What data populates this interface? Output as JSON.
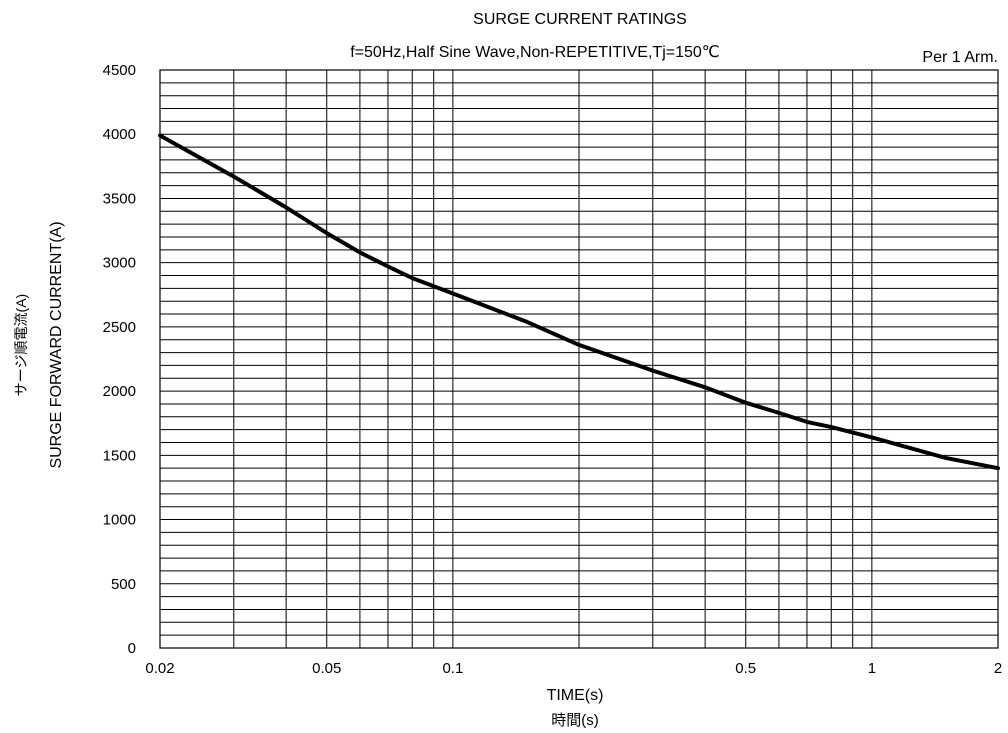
{
  "chart_data": {
    "type": "line",
    "title": "SURGE CURRENT RATINGS",
    "subtitle": "f=50Hz,Half Sine Wave,Non-REPETITIVE,Tj=150℃",
    "annotation": "Per 1 Arm.",
    "xlabel": "TIME(s)",
    "xlabel_ja": "時間(s)",
    "ylabel": "SURGE FORWARD CURRENT(A)",
    "ylabel_ja": "サージ順電流(A)",
    "x_scale": "log",
    "xlim": [
      0.02,
      2
    ],
    "ylim": [
      0,
      4500
    ],
    "grid": true,
    "x_ticks": [
      0.02,
      0.05,
      0.1,
      0.5,
      1,
      2
    ],
    "x_tick_labels": [
      "0.02",
      "0.05",
      "0.1",
      "0.5",
      "1",
      "2"
    ],
    "x_minor_gridlines": [
      0.02,
      0.03,
      0.04,
      0.05,
      0.06,
      0.07,
      0.08,
      0.09,
      0.1,
      0.2,
      0.3,
      0.4,
      0.5,
      0.6,
      0.7,
      0.8,
      0.9,
      1,
      2
    ],
    "y_ticks": [
      0,
      500,
      1000,
      1500,
      2000,
      2500,
      3000,
      3500,
      4000,
      4500
    ],
    "y_tick_labels": [
      "0",
      "500",
      "1000",
      "1500",
      "2000",
      "2500",
      "3000",
      "3500",
      "4000",
      "4500"
    ],
    "y_gridline_step": 100,
    "line_color": "#000000",
    "series": [
      {
        "x": [
          0.02,
          0.03,
          0.04,
          0.05,
          0.06,
          0.07,
          0.08,
          0.1,
          0.15,
          0.2,
          0.3,
          0.4,
          0.5,
          0.6,
          0.7,
          0.8,
          1,
          1.5,
          2
        ],
        "y": [
          3990,
          3670,
          3430,
          3230,
          3080,
          2970,
          2880,
          2760,
          2540,
          2360,
          2160,
          2030,
          1910,
          1830,
          1760,
          1720,
          1640,
          1480,
          1400
        ]
      }
    ]
  }
}
